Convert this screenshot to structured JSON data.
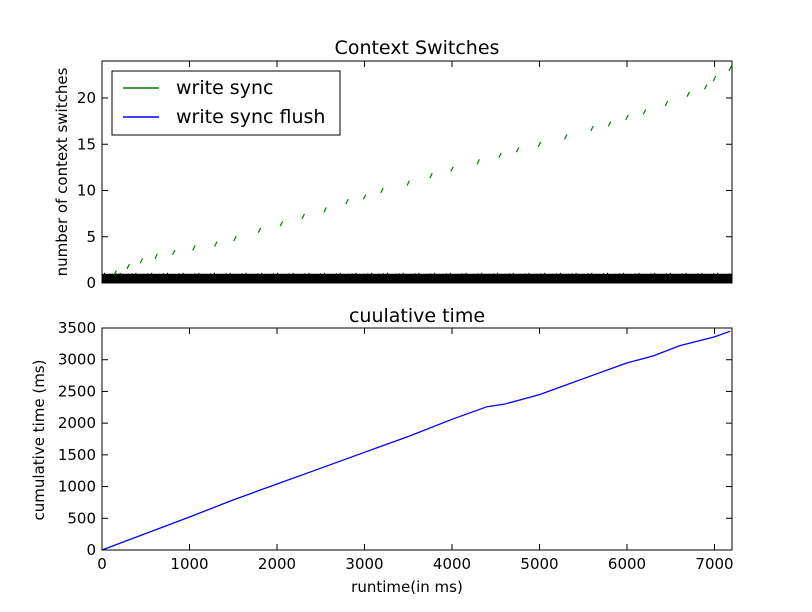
{
  "chart_data": [
    {
      "type": "scatter",
      "title": "Context Switches",
      "xlabel": "",
      "ylabel": "number of context switches",
      "xlim": [
        0,
        7200
      ],
      "ylim": [
        0,
        24
      ],
      "yticks": [
        0,
        5,
        10,
        15,
        20
      ],
      "xtick_labels_shown": false,
      "grid": false,
      "legend": {
        "placement": "upper-left",
        "entries": [
          "write sync",
          "write sync flush"
        ]
      },
      "series": [
        {
          "name": "write sync",
          "color": "#008000",
          "style": "dash-line",
          "x": [
            150,
            300,
            450,
            620,
            820,
            1050,
            1300,
            1520,
            1800,
            2050,
            2300,
            2550,
            2800,
            3000,
            3200,
            3500,
            3760,
            4000,
            4300,
            4550,
            4750,
            5000,
            5300,
            5600,
            5800,
            6000,
            6200,
            6450,
            6700,
            6900,
            7000,
            7180
          ],
          "y": [
            1.1,
            1.8,
            2.4,
            2.9,
            3.3,
            3.8,
            4.2,
            4.8,
            5.7,
            6.4,
            7.2,
            7.9,
            8.8,
            9.3,
            10.0,
            10.8,
            11.6,
            12.3,
            13.1,
            13.8,
            14.4,
            15.0,
            15.8,
            16.7,
            17.2,
            17.9,
            18.5,
            19.4,
            20.4,
            21.2,
            22.1,
            23.2
          ]
        },
        {
          "name": "write sync flush",
          "color": "#0000ff",
          "style": "line",
          "x": [],
          "y": []
        },
        {
          "name": "",
          "color": "#000000",
          "style": "dense-band",
          "y_range": [
            0,
            1
          ]
        }
      ]
    },
    {
      "type": "line",
      "title": "cuulative time",
      "xlabel": "runtime(in ms)",
      "ylabel": "cumulative time (ms)",
      "xlim": [
        0,
        7200
      ],
      "ylim": [
        0,
        3500
      ],
      "xticks": [
        0,
        1000,
        2000,
        3000,
        4000,
        5000,
        6000,
        7000
      ],
      "yticks": [
        0,
        500,
        1000,
        1500,
        2000,
        2500,
        3000,
        3500
      ],
      "grid": false,
      "series": [
        {
          "name": "",
          "color": "#0000ff",
          "x": [
            0,
            500,
            1000,
            1500,
            2000,
            2500,
            3000,
            3500,
            4000,
            4300,
            4400,
            4600,
            5000,
            5500,
            6000,
            6300,
            6600,
            7000,
            7180
          ],
          "y": [
            0,
            260,
            520,
            790,
            1040,
            1290,
            1540,
            1790,
            2060,
            2210,
            2260,
            2300,
            2450,
            2700,
            2950,
            3060,
            3220,
            3360,
            3450
          ]
        }
      ]
    }
  ]
}
